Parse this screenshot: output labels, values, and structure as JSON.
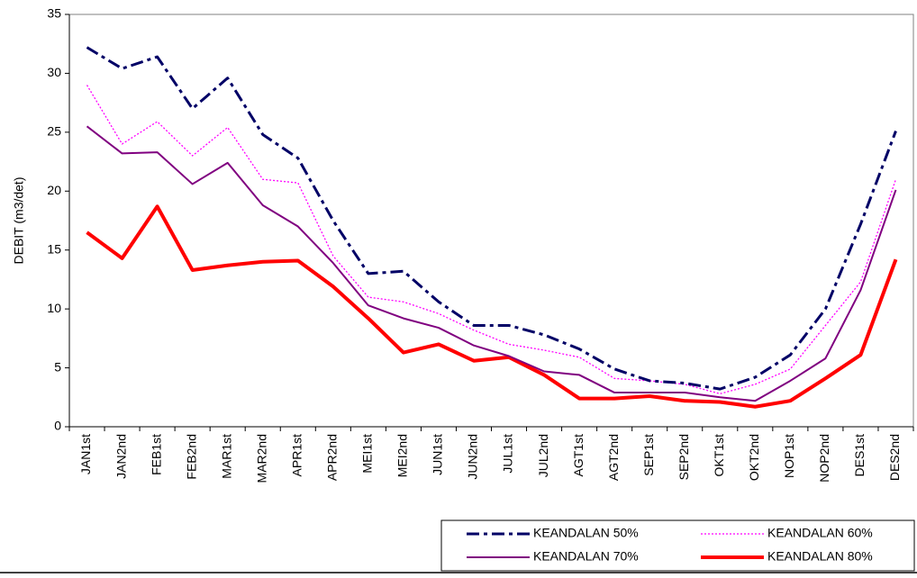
{
  "chart_data": {
    "type": "line",
    "y_label": "DEBIT  (m3/det)",
    "categories": [
      "JAN1st",
      "JAN2nd",
      "FEB1st",
      "FEB2nd",
      "MAR1st",
      "MAR2nd",
      "APR1st",
      "APR2nd",
      "MEI1st",
      "MEI2nd",
      "JUN1st",
      "JUN2nd",
      "JUL1st",
      "JUL2nd",
      "AGT1st",
      "AGT2nd",
      "SEP1st",
      "SEP2nd",
      "OKT1st",
      "OKT2nd",
      "NOP1st",
      "NOP2nd",
      "DES1st",
      "DES2nd"
    ],
    "series": [
      {
        "name": "KEANDALAN 50%",
        "color": "#000066",
        "linestyle": "dashdot",
        "linewidth": 3,
        "values": [
          32.2,
          30.4,
          31.4,
          27,
          29.6,
          24.8,
          22.8,
          17.5,
          13,
          13.2,
          10.6,
          8.6,
          8.6,
          7.8,
          6.6,
          4.9,
          3.9,
          3.7,
          3.2,
          4.2,
          6.1,
          10,
          17.2,
          25.1
        ]
      },
      {
        "name": "KEANDALAN 60%",
        "color": "#ff00ff",
        "linestyle": "dotted",
        "linewidth": 1.3,
        "values": [
          29,
          24,
          25.9,
          23,
          25.4,
          21,
          20.7,
          14.5,
          11,
          10.6,
          9.6,
          8.2,
          7,
          6.5,
          5.9,
          4.1,
          3.9,
          3.6,
          2.8,
          3.6,
          4.9,
          8.6,
          12.3,
          21
        ]
      },
      {
        "name": "KEANDALAN 70%",
        "color": "#800080",
        "linestyle": "solid",
        "linewidth": 2,
        "values": [
          25.5,
          23.2,
          23.3,
          20.6,
          22.4,
          18.8,
          17,
          13.9,
          10.3,
          9.2,
          8.4,
          6.9,
          6,
          4.7,
          4.4,
          2.9,
          2.9,
          2.9,
          2.5,
          2.2,
          3.9,
          5.8,
          11.6,
          20.1
        ]
      },
      {
        "name": "KEANDALAN 80%",
        "color": "#ff0000",
        "linestyle": "solid",
        "linewidth": 4,
        "values": [
          16.5,
          14.3,
          18.7,
          13.3,
          13.7,
          14,
          14.1,
          11.9,
          9.2,
          6.3,
          7,
          5.6,
          5.9,
          4.4,
          2.4,
          2.4,
          2.6,
          2.2,
          2.1,
          1.7,
          2.2,
          4.1,
          6.1,
          14.2
        ]
      }
    ],
    "ylim": [
      0,
      35
    ],
    "yticks": [
      0,
      5,
      10,
      15,
      20,
      25,
      30,
      35
    ],
    "grid": false,
    "legend": "lower right"
  }
}
